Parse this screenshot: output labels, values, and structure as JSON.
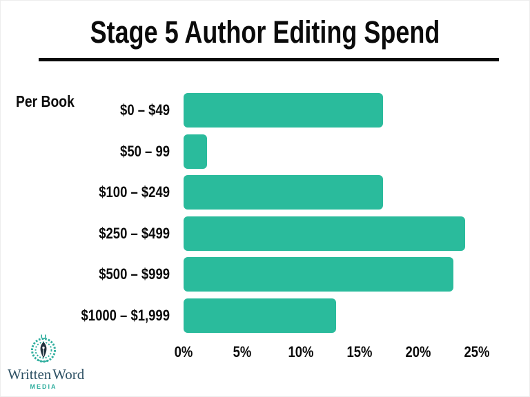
{
  "header": {
    "title": "Stage 5 Author Editing Spend"
  },
  "axis": {
    "y_corner_label": "Per Book"
  },
  "chart_data": {
    "type": "bar",
    "orientation": "horizontal",
    "title": "Stage 5 Author Editing Spend",
    "categories": [
      "$0 – $49",
      "$50 – 99",
      "$100 – $249",
      "$250 – $499",
      "$500 – $999",
      "$1000 – $1,999"
    ],
    "values": [
      17,
      2,
      17,
      24,
      23,
      13
    ],
    "unit": "%",
    "xlim": [
      0,
      25
    ],
    "x_ticks": [
      {
        "label": "0%",
        "value": 0
      },
      {
        "label": "5%",
        "value": 5
      },
      {
        "label": "10%",
        "value": 10
      },
      {
        "label": "15%",
        "value": 15
      },
      {
        "label": "20%",
        "value": 20
      },
      {
        "label": "25%",
        "value": 25
      }
    ],
    "grid": false,
    "legend": false,
    "bar_color": "#2abb9c"
  },
  "logo": {
    "wordmark": "Written Word",
    "subtitle": "MEDIA",
    "text_color": "#2f5265",
    "accent_color": "#2fae9e"
  }
}
